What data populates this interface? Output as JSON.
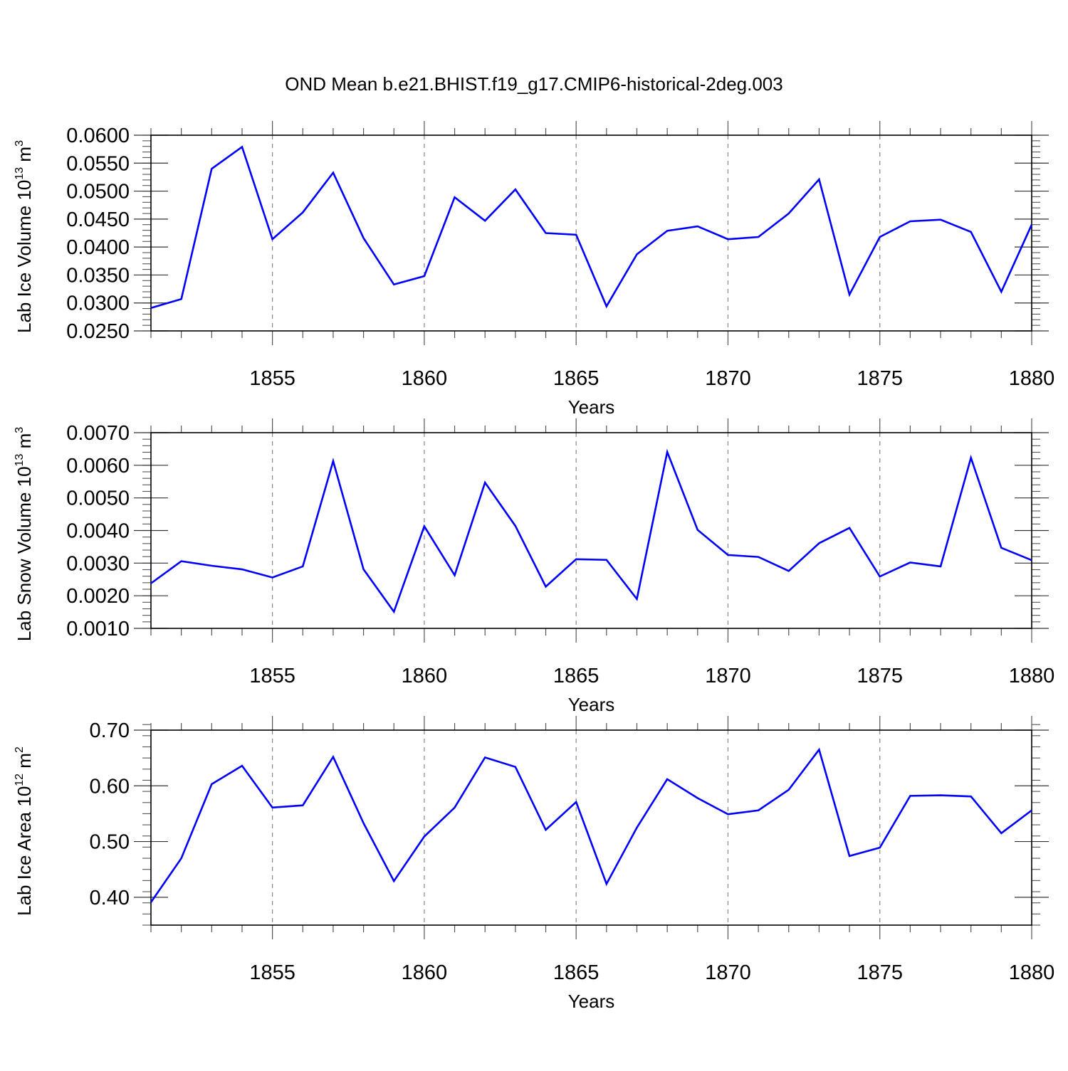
{
  "title": "OND Mean b.e21.BHIST.f19_g17.CMIP6-historical-2deg.003",
  "line_color": "#0000ff",
  "chart_data": [
    {
      "type": "line",
      "ylabel_main": "Lab Ice Volume 10",
      "ylabel_sup": "13",
      "ylabel_unit": " m",
      "ylabel_unit_sup": "3",
      "xlabel": "Years",
      "xlim": [
        1851,
        1880
      ],
      "ylim": [
        0.025,
        0.06
      ],
      "x_ticks": [
        1855,
        1860,
        1865,
        1870,
        1875,
        1880
      ],
      "y_ticks": [
        0.025,
        0.03,
        0.035,
        0.04,
        0.045,
        0.05,
        0.055,
        0.06
      ],
      "y_tick_labels": [
        "0.0250",
        "0.0300",
        "0.0350",
        "0.0400",
        "0.0450",
        "0.0500",
        "0.0550",
        "0.0600"
      ],
      "series": [
        {
          "x": [
            1851,
            1852,
            1853,
            1854,
            1855,
            1856,
            1857,
            1858,
            1859,
            1860,
            1861,
            1862,
            1863,
            1864,
            1865,
            1866,
            1867,
            1868,
            1869,
            1870,
            1871,
            1872,
            1873,
            1874,
            1875,
            1876,
            1877,
            1878,
            1879,
            1880
          ],
          "values": [
            0.0291,
            0.0307,
            0.054,
            0.0579,
            0.0414,
            0.0462,
            0.0533,
            0.0416,
            0.0333,
            0.0348,
            0.0489,
            0.0447,
            0.0503,
            0.0425,
            0.0422,
            0.0294,
            0.0387,
            0.0429,
            0.0437,
            0.0414,
            0.0418,
            0.046,
            0.0521,
            0.0315,
            0.0418,
            0.0446,
            0.0449,
            0.0427,
            0.032,
            0.044
          ]
        }
      ]
    },
    {
      "type": "line",
      "ylabel_main": "Lab Snow Volume 10",
      "ylabel_sup": "13",
      "ylabel_unit": " m",
      "ylabel_unit_sup": "3",
      "xlabel": "Years",
      "xlim": [
        1851,
        1880
      ],
      "ylim": [
        0.001,
        0.007
      ],
      "x_ticks": [
        1855,
        1860,
        1865,
        1870,
        1875,
        1880
      ],
      "y_ticks": [
        0.001,
        0.002,
        0.003,
        0.004,
        0.005,
        0.006,
        0.007
      ],
      "y_tick_labels": [
        "0.0010",
        "0.0020",
        "0.0030",
        "0.0040",
        "0.0050",
        "0.0060",
        "0.0070"
      ],
      "series": [
        {
          "x": [
            1851,
            1852,
            1853,
            1854,
            1855,
            1856,
            1857,
            1858,
            1859,
            1860,
            1861,
            1862,
            1863,
            1864,
            1865,
            1866,
            1867,
            1868,
            1869,
            1870,
            1871,
            1872,
            1873,
            1874,
            1875,
            1876,
            1877,
            1878,
            1879,
            1880
          ],
          "values": [
            0.00238,
            0.00306,
            0.00292,
            0.00281,
            0.00256,
            0.0029,
            0.00613,
            0.00281,
            0.00151,
            0.00413,
            0.00263,
            0.00547,
            0.00414,
            0.00228,
            0.00312,
            0.0031,
            0.0019,
            0.00641,
            0.00402,
            0.00325,
            0.00319,
            0.00276,
            0.00361,
            0.00408,
            0.00259,
            0.00302,
            0.0029,
            0.00623,
            0.00347,
            0.00309
          ]
        }
      ]
    },
    {
      "type": "line",
      "ylabel_main": "Lab Ice Area 10",
      "ylabel_sup": "12",
      "ylabel_unit": " m",
      "ylabel_unit_sup": "2",
      "xlabel": "Years",
      "xlim": [
        1851,
        1880
      ],
      "ylim": [
        0.35,
        0.7
      ],
      "x_ticks": [
        1855,
        1860,
        1865,
        1870,
        1875,
        1880
      ],
      "y_ticks": [
        0.4,
        0.5,
        0.6,
        0.7
      ],
      "y_tick_labels": [
        "0.40",
        "0.50",
        "0.60",
        "0.70"
      ],
      "series": [
        {
          "x": [
            1851,
            1852,
            1853,
            1854,
            1855,
            1856,
            1857,
            1858,
            1859,
            1860,
            1861,
            1862,
            1863,
            1864,
            1865,
            1866,
            1867,
            1868,
            1869,
            1870,
            1871,
            1872,
            1873,
            1874,
            1875,
            1876,
            1877,
            1878,
            1879,
            1880
          ],
          "values": [
            0.391,
            0.47,
            0.603,
            0.636,
            0.561,
            0.565,
            0.652,
            0.533,
            0.429,
            0.509,
            0.561,
            0.651,
            0.634,
            0.521,
            0.571,
            0.424,
            0.525,
            0.612,
            0.578,
            0.549,
            0.556,
            0.593,
            0.665,
            0.474,
            0.489,
            0.582,
            0.583,
            0.581,
            0.515,
            0.556
          ]
        }
      ]
    }
  ]
}
